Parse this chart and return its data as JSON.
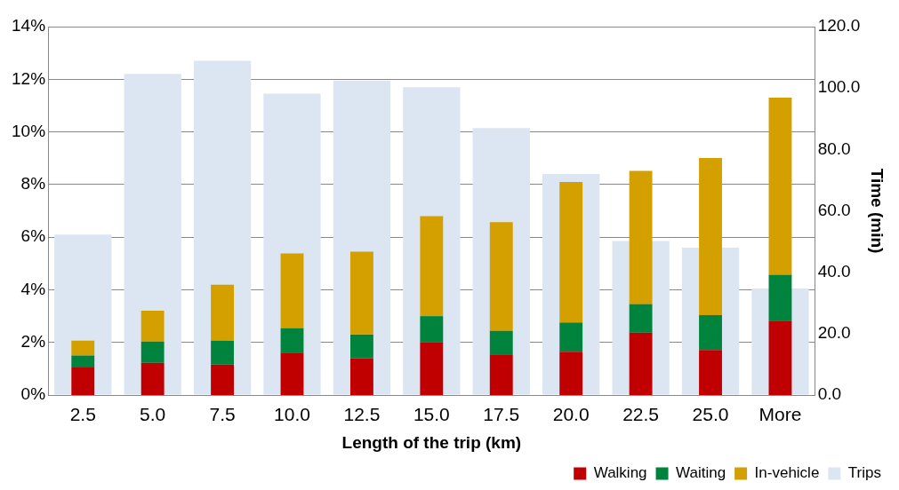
{
  "chart_data": {
    "type": "bar",
    "stacked": true,
    "xlabel": "Length of the trip (km)",
    "y2label": "Time (min)",
    "categories": [
      "2.5",
      "5.0",
      "7.5",
      "10.0",
      "12.5",
      "15.0",
      "17.5",
      "20.0",
      "22.5",
      "25.0",
      "More"
    ],
    "series": [
      {
        "name": "Trips",
        "color": "#dce6f2",
        "axis": "y",
        "values": [
          6.1,
          12.2,
          12.7,
          11.45,
          11.95,
          11.7,
          10.15,
          8.4,
          5.85,
          5.6,
          4.05
        ]
      },
      {
        "name": "Walking",
        "color": "#c00000",
        "axis": "y2",
        "values": [
          9.0,
          10.5,
          9.9,
          13.8,
          12.0,
          17.1,
          13.2,
          14.1,
          20.3,
          14.7,
          24.2
        ]
      },
      {
        "name": "Waiting",
        "color": "#00843d",
        "axis": "y2",
        "values": [
          3.9,
          6.9,
          7.8,
          8.0,
          7.7,
          8.6,
          7.7,
          9.5,
          9.3,
          11.3,
          15.0
        ]
      },
      {
        "name": "In-vehicle",
        "color": "#d4a000",
        "axis": "y2",
        "values": [
          4.8,
          10.1,
          18.2,
          24.3,
          27.0,
          32.6,
          35.4,
          45.8,
          43.4,
          51.2,
          57.7
        ]
      }
    ],
    "ylim": [
      0,
      14
    ],
    "yticks": [
      {
        "value": 0,
        "label": "0%"
      },
      {
        "value": 2,
        "label": "2%"
      },
      {
        "value": 4,
        "label": "4%"
      },
      {
        "value": 6,
        "label": "6%"
      },
      {
        "value": 8,
        "label": "8%"
      },
      {
        "value": 10,
        "label": "10%"
      },
      {
        "value": 12,
        "label": "12%"
      },
      {
        "value": 14,
        "label": "14%"
      }
    ],
    "y2lim": [
      0,
      120
    ],
    "y2ticks": [
      {
        "value": 0,
        "label": "0.0"
      },
      {
        "value": 20,
        "label": "20.0"
      },
      {
        "value": 40,
        "label": "40.0"
      },
      {
        "value": 60,
        "label": "60.0"
      },
      {
        "value": 80,
        "label": "80.0"
      },
      {
        "value": 100,
        "label": "100.0"
      },
      {
        "value": 120,
        "label": "120.0"
      }
    ],
    "grid": "y",
    "legend": "bottom right"
  }
}
